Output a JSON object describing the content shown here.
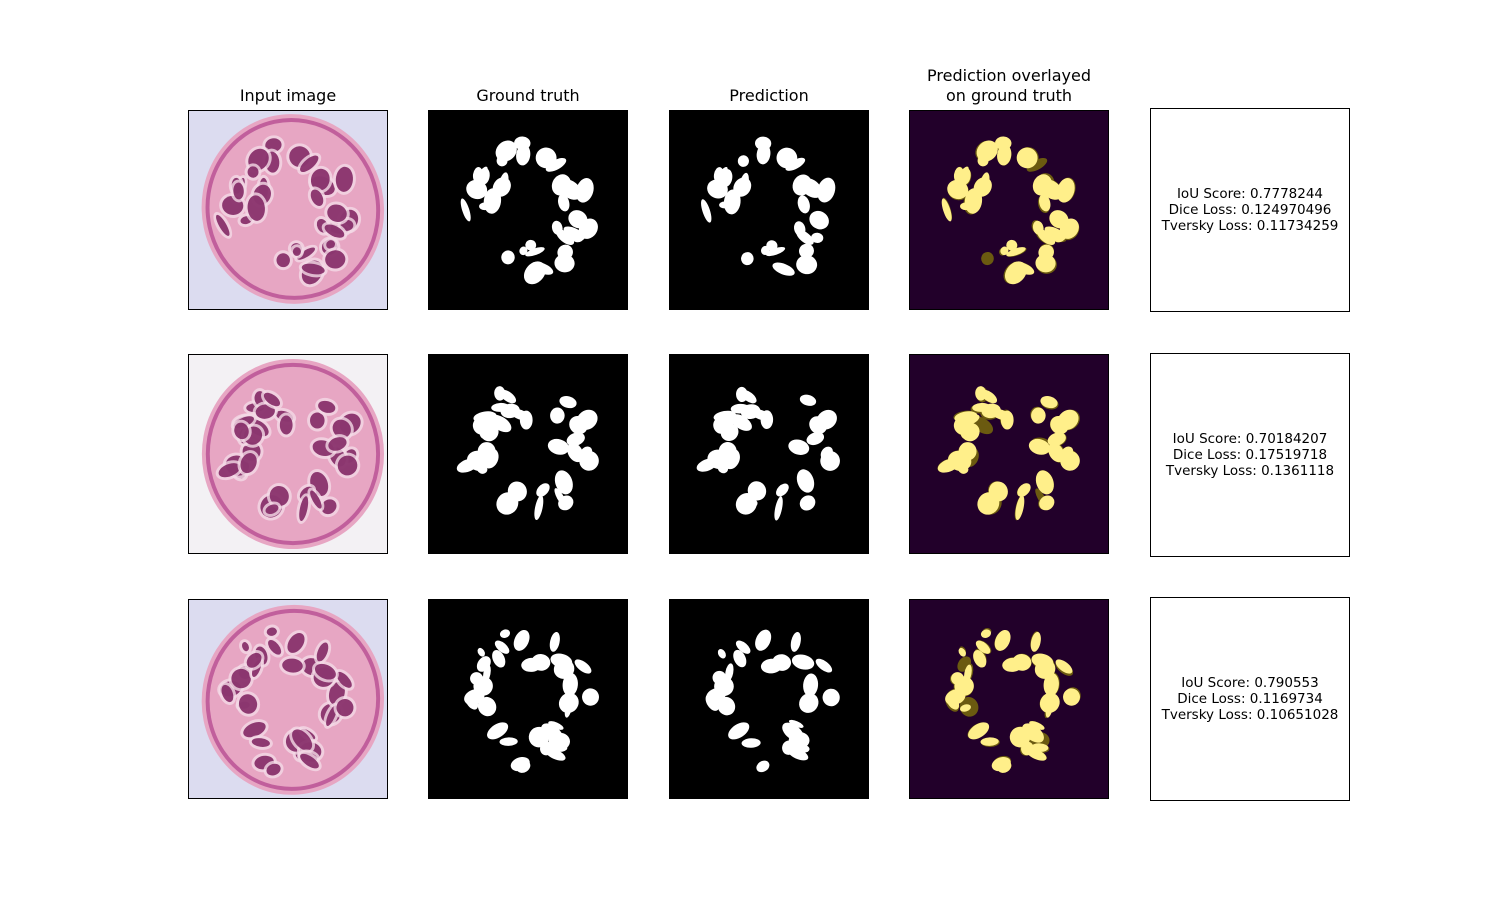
{
  "columns": {
    "input": "Input image",
    "ground_truth": "Ground truth",
    "prediction": "Prediction",
    "overlay_line1": "Prediction overlayed",
    "overlay_line2": "on ground truth"
  },
  "rows": [
    {
      "metrics": {
        "iou": "IoU Score: 0.7778244",
        "dice": "Dice Loss: 0.124970496",
        "tversky": "Tversky Loss: 0.11734259"
      }
    },
    {
      "metrics": {
        "iou": "IoU Score: 0.70184207",
        "dice": "Dice Loss: 0.17519718",
        "tversky": "Tversky Loss: 0.1361118"
      }
    },
    {
      "metrics": {
        "iou": "IoU Score: 0.790553",
        "dice": "Dice Loss: 0.1169734",
        "tversky": "Tversky Loss: 0.10651028"
      }
    }
  ],
  "colors": {
    "mask_background": "#000000",
    "mask_foreground": "#ffffff",
    "overlay_background": "#22002a",
    "overlay_foreground": "#ffef8a",
    "overlay_mismatch": "#6b5a10",
    "tissue_pink": "#e7a6c3",
    "tissue_purple": "#b0418b",
    "tissue_dark": "#7c1e5e",
    "slide_background": "#dcdcf0"
  }
}
